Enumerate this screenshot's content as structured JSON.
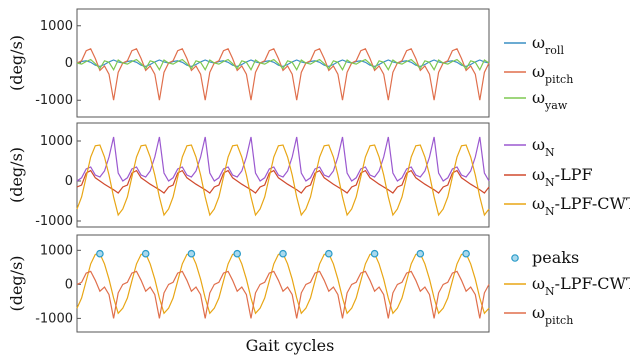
{
  "figure": {
    "xlabel": "Gait cycles"
  },
  "chart_data": [
    {
      "type": "line",
      "ylabel": "(deg/s)",
      "ylim": [
        -1450,
        1450
      ],
      "yticks": [
        1000,
        0,
        -1000
      ],
      "tick_labels": [
        "1000",
        "0",
        "-1000"
      ],
      "x": [
        0.0,
        0.1,
        0.2,
        0.3,
        0.4,
        0.5,
        0.6,
        0.7,
        0.8,
        0.9,
        1.0
      ],
      "gait_cycles": 9,
      "series": [
        {
          "name": "ω",
          "sub": "roll",
          "color": "#3a8fc4",
          "values": [
            0,
            40,
            60,
            20,
            -60,
            -90,
            -40,
            30,
            80,
            30,
            0
          ]
        },
        {
          "name": "ω",
          "sub": "pitch",
          "color": "#e06f4c",
          "values": [
            0,
            60,
            330,
            380,
            120,
            -200,
            -80,
            -300,
            -1000,
            -250,
            0
          ]
        },
        {
          "name": "ω",
          "sub": "yaw",
          "color": "#7ec850",
          "values": [
            0,
            -30,
            40,
            90,
            -20,
            -150,
            60,
            20,
            -180,
            80,
            0
          ]
        }
      ]
    },
    {
      "type": "line",
      "ylabel": "(deg/s)",
      "ylim": [
        -1150,
        1450
      ],
      "yticks": [
        1000,
        0,
        -1000
      ],
      "tick_labels": [
        "1000",
        "0",
        "-1000"
      ],
      "x": [
        0.0,
        0.1,
        0.2,
        0.3,
        0.4,
        0.5,
        0.6,
        0.7,
        0.8,
        0.9,
        1.0
      ],
      "gait_cycles": 9,
      "series": [
        {
          "name": "ω",
          "sub": "N",
          "color": "#9b59d0",
          "values": [
            0,
            80,
            300,
            350,
            150,
            100,
            250,
            600,
            1100,
            200,
            0
          ]
        },
        {
          "name": "ω",
          "sub": "N",
          "suffix": "-LPF",
          "color": "#d04a2e",
          "values": [
            -150,
            -100,
            200,
            260,
            80,
            0,
            -80,
            -150,
            -220,
            -300,
            -150
          ]
        },
        {
          "name": "ω",
          "sub": "N",
          "suffix": "-LPF-CWT",
          "color": "#e8a615",
          "values": [
            -700,
            -400,
            100,
            600,
            880,
            900,
            600,
            150,
            -400,
            -850,
            -700
          ]
        }
      ]
    },
    {
      "type": "line",
      "ylabel": "(deg/s)",
      "ylim": [
        -1400,
        1450
      ],
      "yticks": [
        1000,
        0,
        -1000
      ],
      "tick_labels": [
        "1000",
        "0",
        "-1000"
      ],
      "x": [
        0.0,
        0.1,
        0.2,
        0.3,
        0.4,
        0.5,
        0.6,
        0.7,
        0.8,
        0.9,
        1.0
      ],
      "gait_cycles": 9,
      "peak_value": 900,
      "series": [
        {
          "name": "peaks",
          "color": "#2a9bc8",
          "marker": true
        },
        {
          "name": "ω",
          "sub": "N",
          "suffix": "-LPF-CWT",
          "color": "#e8a615",
          "values": [
            -700,
            -400,
            100,
            600,
            880,
            900,
            600,
            150,
            -400,
            -850,
            -700
          ]
        },
        {
          "name": "ω",
          "sub": "pitch",
          "color": "#e06f4c",
          "values": [
            0,
            60,
            330,
            380,
            120,
            -200,
            -80,
            -300,
            -1000,
            -250,
            0
          ]
        }
      ]
    }
  ]
}
